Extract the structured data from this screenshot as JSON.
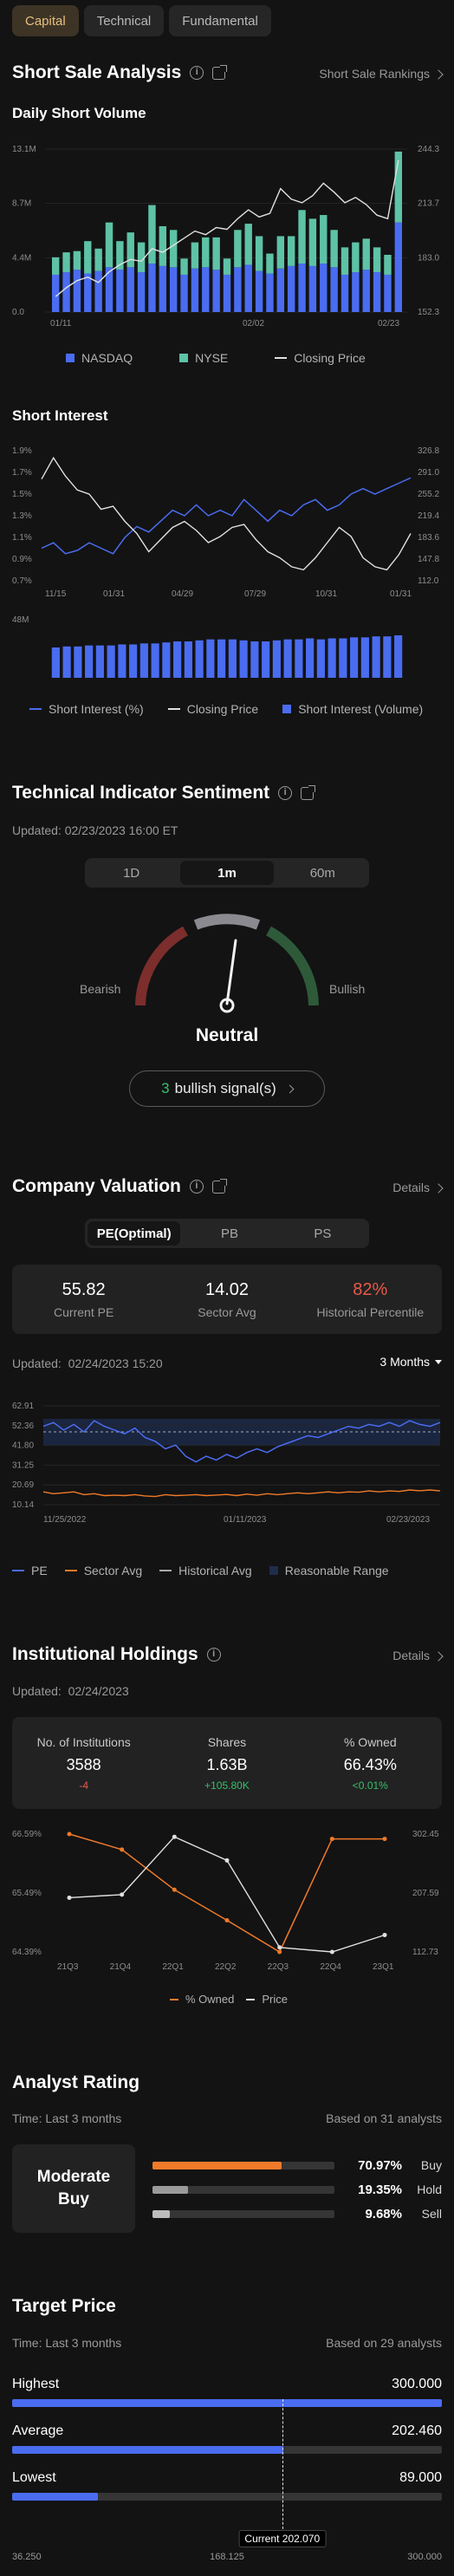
{
  "top_tabs": [
    {
      "label": "Capital",
      "active": true
    },
    {
      "label": "Technical",
      "active": false
    },
    {
      "label": "Fundamental",
      "active": false
    }
  ],
  "short_sale": {
    "title": "Short Sale Analysis",
    "rankings_link": "Short Sale Rankings",
    "daily_title": "Daily Short Volume",
    "daily_y_left": [
      "13.1M",
      "8.7M",
      "4.4M",
      "0.0"
    ],
    "daily_y_right": [
      "244.3",
      "213.7",
      "183.0",
      "152.3"
    ],
    "daily_x": [
      "01/11",
      "02/02",
      "02/23"
    ],
    "daily_legend": [
      "NASDAQ",
      "NYSE",
      "Closing Price"
    ],
    "interest_title": "Short Interest",
    "interest_y_left": [
      "1.9%",
      "1.7%",
      "1.5%",
      "1.3%",
      "1.1%",
      "0.9%",
      "0.7%"
    ],
    "interest_y_right": [
      "326.8",
      "291.0",
      "255.2",
      "219.4",
      "183.6",
      "147.8",
      "112.0"
    ],
    "interest_x": [
      "11/15",
      "01/31",
      "04/29",
      "07/29",
      "10/31",
      "01/31"
    ],
    "interest_vol_label": "48M",
    "interest_legend": [
      "Short Interest (%)",
      "Closing Price",
      "Short Interest (Volume)"
    ]
  },
  "chart_data": [
    {
      "type": "bar",
      "title": "Daily Short Volume",
      "x_labels": [
        "01/11",
        "02/02",
        "02/23"
      ],
      "ylim_left": [
        0,
        13.1
      ],
      "ylim_right": [
        152.3,
        244.3
      ],
      "legend_position": "bottom",
      "series": [
        {
          "name": "NASDAQ",
          "color": "#4a6cf0",
          "values": [
            3.0,
            3.2,
            3.4,
            3.1,
            3.3,
            3.6,
            3.4,
            3.6,
            3.2,
            3.9,
            3.7,
            3.6,
            3.0,
            3.5,
            3.6,
            3.4,
            3.0,
            3.6,
            3.8,
            3.3,
            3.1,
            3.5,
            3.7,
            3.9,
            3.7,
            3.9,
            3.6,
            3.0,
            3.2,
            3.4,
            3.2,
            3.0,
            7.2
          ]
        },
        {
          "name": "NYSE",
          "color": "#5ec2a6",
          "values": [
            1.4,
            1.6,
            1.5,
            2.6,
            1.8,
            3.6,
            2.3,
            2.8,
            2.4,
            4.7,
            3.2,
            3.0,
            1.3,
            2.1,
            2.4,
            2.6,
            1.3,
            3.0,
            3.3,
            2.8,
            1.6,
            2.6,
            2.4,
            4.3,
            3.8,
            3.9,
            3.0,
            2.2,
            2.4,
            2.5,
            2.0,
            1.6,
            5.7
          ]
        },
        {
          "name": "Closing Price",
          "color": "#e0e0e0",
          "values": [
            161,
            166,
            170,
            172,
            169,
            175,
            179,
            182,
            181,
            188,
            186,
            190,
            194,
            198,
            196,
            200,
            199,
            205,
            210,
            206,
            208,
            222,
            216,
            214,
            218,
            225,
            220,
            214,
            217,
            213,
            207,
            205,
            238
          ]
        }
      ]
    },
    {
      "type": "line",
      "title": "Short Interest",
      "x_labels": [
        "11/15",
        "01/31",
        "04/29",
        "07/29",
        "10/31",
        "01/31"
      ],
      "ylim_left": [
        0.7,
        1.9
      ],
      "ylim_right": [
        112.0,
        326.8
      ],
      "legend_position": "bottom",
      "series": [
        {
          "name": "Short Interest (%)",
          "color": "#4a6cf0",
          "values": [
            1.0,
            1.05,
            0.95,
            0.98,
            1.05,
            1.0,
            0.95,
            1.1,
            1.2,
            1.15,
            1.25,
            1.35,
            1.3,
            1.4,
            1.3,
            1.35,
            1.3,
            1.45,
            1.35,
            1.25,
            1.35,
            1.3,
            1.4,
            1.45,
            1.35,
            1.4,
            1.5,
            1.55,
            1.5,
            1.55,
            1.6,
            1.65
          ]
        },
        {
          "name": "Closing Price",
          "color": "#e0e0e0",
          "values": [
            280,
            315,
            285,
            262,
            255,
            230,
            235,
            210,
            190,
            160,
            180,
            200,
            210,
            195,
            175,
            185,
            200,
            205,
            180,
            160,
            150,
            135,
            130,
            150,
            175,
            200,
            185,
            150,
            135,
            130,
            155,
            190
          ]
        },
        {
          "name": "Short Interest (Volume)",
          "color": "#4a6cf0",
          "values": [
            30,
            31,
            31,
            32,
            32,
            32,
            33,
            33,
            34,
            34,
            35,
            36,
            36,
            37,
            38,
            38,
            38,
            37,
            36,
            36,
            37,
            38,
            38,
            39,
            38,
            39,
            39,
            40,
            40,
            41,
            41,
            42
          ]
        }
      ]
    },
    {
      "type": "line",
      "title": "PE",
      "x_labels": [
        "11/25/2022",
        "01/11/2023",
        "02/23/2023"
      ],
      "y_labels": [
        "62.91",
        "52.36",
        "41.80",
        "31.25",
        "20.69",
        "10.14"
      ],
      "ylim": [
        10.14,
        62.91
      ],
      "legend_position": "bottom",
      "series": [
        {
          "name": "PE",
          "color": "#4a6cf0",
          "values": [
            52,
            54,
            50,
            53,
            49,
            55,
            52,
            50,
            48,
            51,
            46,
            44,
            40,
            42,
            36,
            33,
            36,
            34,
            37,
            35,
            38,
            40,
            38,
            41,
            43,
            45,
            47,
            46,
            48,
            50,
            52,
            51,
            53,
            52,
            54,
            52,
            55,
            53,
            52,
            54
          ]
        },
        {
          "name": "Sector Avg",
          "color": "#f07a2a",
          "values": [
            17,
            16,
            16.5,
            17,
            15.5,
            16,
            15,
            15.2,
            15,
            15.5,
            14.8,
            14.5,
            15.5,
            15,
            15.2,
            15.5,
            15,
            15.3,
            15.6,
            15,
            15.8,
            15.2,
            16,
            15.5,
            16,
            16.5,
            16,
            16.5,
            17,
            16.5,
            17,
            16.8,
            17.5,
            17,
            17.5,
            17.2,
            18,
            17.6,
            18,
            17.5
          ]
        },
        {
          "name": "Historical Avg",
          "color": "#aaaaaa",
          "values": [
            49,
            49,
            49,
            49,
            49,
            49,
            49,
            49,
            49,
            49,
            49,
            49,
            49,
            49,
            49,
            49,
            49,
            49,
            49,
            49,
            49,
            49,
            49,
            49,
            49,
            49,
            49,
            49,
            49,
            49,
            49,
            49,
            49,
            49,
            49,
            49,
            49,
            49,
            49,
            49
          ]
        }
      ]
    },
    {
      "type": "line",
      "title": "Institutional Holdings",
      "x_labels": [
        "21Q3",
        "21Q4",
        "22Q1",
        "22Q2",
        "22Q3",
        "22Q4",
        "23Q1"
      ],
      "ylim_left": [
        64.39,
        66.59
      ],
      "ylim_right": [
        112.73,
        302.45
      ],
      "legend_position": "bottom",
      "series": [
        {
          "name": "% Owned",
          "color": "#f07a2a",
          "values": [
            66.59,
            66.3,
            65.55,
            64.98,
            64.39,
            66.5,
            66.5
          ]
        },
        {
          "name": "Price",
          "color": "#e0e0e0",
          "values": [
            200,
            205,
            298,
            260,
            120,
            112.73,
            140
          ]
        }
      ]
    }
  ],
  "tech": {
    "title": "Technical Indicator Sentiment",
    "updated": "Updated: 02/23/2023 16:00 ET",
    "periods": [
      {
        "label": "1D",
        "active": false
      },
      {
        "label": "1m",
        "active": true
      },
      {
        "label": "60m",
        "active": false
      }
    ],
    "bearish": "Bearish",
    "bullish": "Bullish",
    "verdict": "Neutral",
    "signal_count": "3",
    "signal_text": "bullish signal(s)"
  },
  "valuation": {
    "title": "Company Valuation",
    "details": "Details",
    "tabs": [
      {
        "label": "PE(Optimal)",
        "active": true
      },
      {
        "label": "PB",
        "active": false
      },
      {
        "label": "PS",
        "active": false
      }
    ],
    "current_pe": "55.82",
    "current_pe_label": "Current PE",
    "sector_avg": "14.02",
    "sector_avg_label": "Sector Avg",
    "hist_pct": "82%",
    "hist_pct_label": "Historical Percentile",
    "updated_label": "Updated:",
    "updated_value": "02/24/2023 15:20",
    "range": "3 Months",
    "y_labels": [
      "62.91",
      "52.36",
      "41.80",
      "31.25",
      "20.69",
      "10.14"
    ],
    "x_labels": [
      "11/25/2022",
      "01/11/2023",
      "02/23/2023"
    ],
    "legend": [
      "PE",
      "Sector Avg",
      "Historical Avg",
      "Reasonable Range"
    ]
  },
  "institutional": {
    "title": "Institutional Holdings",
    "details": "Details",
    "updated_label": "Updated:",
    "updated_value": "02/24/2023",
    "col1_label": "No. of Institutions",
    "col1_value": "3588",
    "col1_change": "-4",
    "col2_label": "Shares",
    "col2_value": "1.63B",
    "col2_change": "+105.80K",
    "col3_label": "% Owned",
    "col3_value": "66.43%",
    "col3_change": "<0.01%",
    "y_left": [
      "66.59%",
      "65.49%",
      "64.39%"
    ],
    "y_right": [
      "302.45",
      "207.59",
      "112.73"
    ],
    "x_labels": [
      "21Q3",
      "21Q4",
      "22Q1",
      "22Q2",
      "22Q3",
      "22Q4",
      "23Q1"
    ],
    "legend": [
      "% Owned",
      "Price"
    ]
  },
  "analyst": {
    "title": "Analyst Rating",
    "time": "Time: Last 3 months",
    "based": "Based on 31 analysts",
    "rating_line1": "Moderate",
    "rating_line2": "Buy",
    "rows": [
      {
        "pct": "70.97%",
        "label": "Buy",
        "value": 70.97,
        "color": "#f07a2a"
      },
      {
        "pct": "19.35%",
        "label": "Hold",
        "value": 19.35,
        "color": "#9a9a9a"
      },
      {
        "pct": "9.68%",
        "label": "Sell",
        "value": 9.68,
        "color": "#bcbcbc"
      }
    ]
  },
  "target": {
    "title": "Target Price",
    "time": "Time: Last 3 months",
    "based": "Based on 29 analysts",
    "rows": [
      {
        "label": "Highest",
        "value_text": "300.000",
        "value": 300.0
      },
      {
        "label": "Average",
        "value_text": "202.460",
        "value": 202.46
      },
      {
        "label": "Lowest",
        "value_text": "89.000",
        "value": 89.0
      }
    ],
    "current_label": "Current 202.070",
    "current_value": 202.07,
    "scale": [
      "36.250",
      "168.125",
      "300.000"
    ],
    "scale_min": 36.25,
    "scale_max": 300.0
  },
  "colors": {
    "blue": "#4a6cf0",
    "teal": "#5ec2a6",
    "orange": "#f07a2a",
    "red": "#e8594a",
    "green": "#35c06a",
    "gold": "#e6bf7d"
  }
}
